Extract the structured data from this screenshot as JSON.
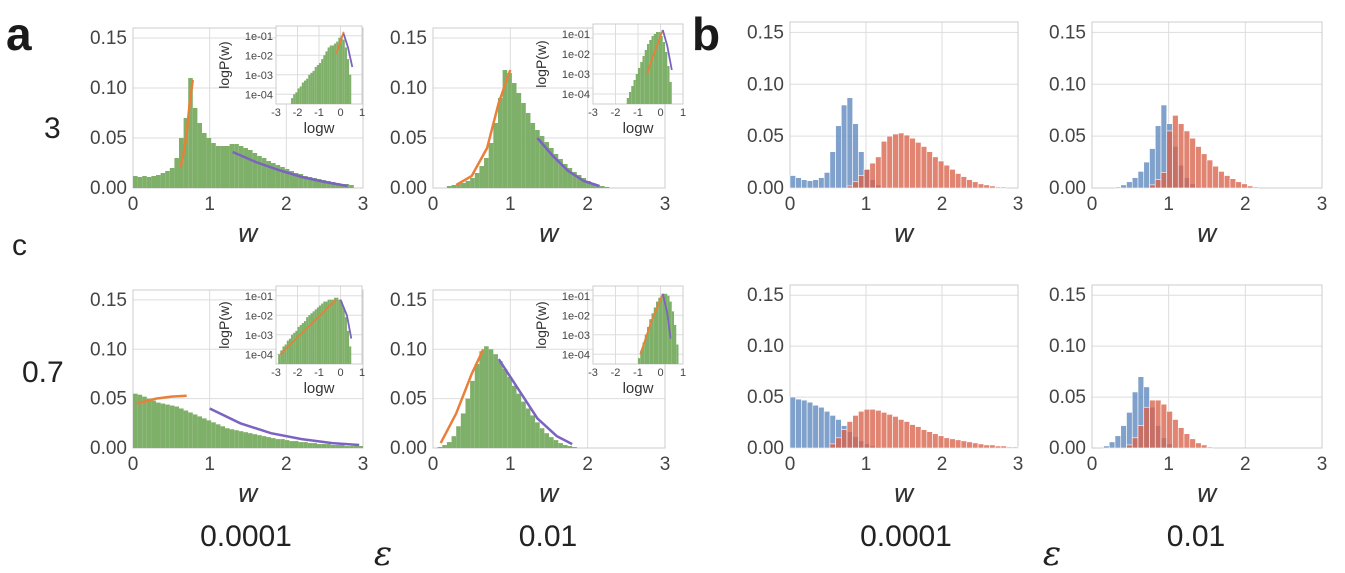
{
  "figure": {
    "panel_a_letter": "a",
    "panel_b_letter": "b",
    "c_label": "c",
    "row_labels": [
      "3",
      "0.7"
    ],
    "epsilon_symbol": "ε",
    "epsilon_values_a": [
      "0.0001",
      "0.01"
    ],
    "epsilon_values_b": [
      "0.0001",
      "0.01"
    ]
  },
  "colors": {
    "hist": "#7fb069",
    "fit_left": "#e8803a",
    "fit_right": "#7b63c2",
    "blue": "#5b87bd",
    "red": "#d9614a"
  },
  "chart_data": [
    {
      "id": "a-c3-eps0.0001",
      "type": "bar",
      "panel": "a",
      "xlabel": "w",
      "xlim": [
        0,
        3
      ],
      "ylim": [
        0,
        0.16
      ],
      "xticks": [
        "0",
        "1",
        "2",
        "3"
      ],
      "yticks": [
        "0.00",
        "0.05",
        "0.10",
        "0.15"
      ],
      "bin_width": 0.06,
      "values": [
        0.012,
        0.011,
        0.012,
        0.011,
        0.012,
        0.013,
        0.015,
        0.017,
        0.02,
        0.03,
        0.05,
        0.07,
        0.11,
        0.08,
        0.065,
        0.055,
        0.05,
        0.045,
        0.042,
        0.042,
        0.042,
        0.044,
        0.044,
        0.042,
        0.04,
        0.038,
        0.035,
        0.032,
        0.03,
        0.027,
        0.025,
        0.023,
        0.021,
        0.019,
        0.017,
        0.015,
        0.014,
        0.012,
        0.011,
        0.01,
        0.009,
        0.008,
        0.007,
        0.006,
        0.005,
        0.004,
        0.004,
        0.003
      ],
      "fit_left": {
        "x": [
          0.62,
          0.66,
          0.7,
          0.74,
          0.78
        ],
        "y": [
          0.02,
          0.035,
          0.055,
          0.085,
          0.108
        ]
      },
      "fit_right": {
        "x": [
          1.3,
          1.6,
          1.9,
          2.2,
          2.5,
          2.8
        ],
        "y": [
          0.036,
          0.026,
          0.018,
          0.011,
          0.006,
          0.002
        ]
      },
      "inset": {
        "xlabel": "logw",
        "ylabel": "logP(w)",
        "xticks": [
          "-3",
          "-2",
          "-1",
          "0",
          "1"
        ],
        "yticks": [
          "1e-04",
          "1e-03",
          "1e-02",
          "1e-01"
        ],
        "xlim": [
          -3,
          1
        ],
        "ylim": [
          -4.5,
          -0.5
        ],
        "bin_width": 0.1,
        "hist_x0": -2.3,
        "hist_logy": [
          -4.2,
          -4.0,
          -3.9,
          -3.7,
          -3.6,
          -3.4,
          -3.3,
          -3.2,
          -3.0,
          -2.9,
          -2.8,
          -2.6,
          -2.5,
          -2.4,
          -2.2,
          -2.0,
          -1.8,
          -1.6,
          -1.5,
          -1.5,
          -1.4,
          -1.3,
          -1.1,
          -1.0,
          -1.2,
          -1.6,
          -2.2,
          -3.0
        ],
        "fit_left": {
          "x": [
            -0.2,
            0,
            0.15
          ],
          "y": [
            -1.9,
            -1.3,
            -0.8
          ]
        },
        "fit_right": {
          "x": [
            0.15,
            0.35,
            0.55
          ],
          "y": [
            -0.9,
            -1.6,
            -2.6
          ]
        }
      }
    },
    {
      "id": "a-c3-eps0.01",
      "type": "bar",
      "panel": "a",
      "xlabel": "w",
      "xlim": [
        0,
        3
      ],
      "ylim": [
        0,
        0.16
      ],
      "xticks": [
        "0",
        "1",
        "2",
        "3"
      ],
      "yticks": [
        "0.00",
        "0.05",
        "0.10",
        "0.15"
      ],
      "bin_width": 0.06,
      "values": [
        0,
        0,
        0,
        0.002,
        0.003,
        0.004,
        0.005,
        0.007,
        0.01,
        0.015,
        0.022,
        0.03,
        0.045,
        0.065,
        0.09,
        0.118,
        0.115,
        0.105,
        0.095,
        0.085,
        0.075,
        0.065,
        0.058,
        0.052,
        0.046,
        0.04,
        0.034,
        0.029,
        0.024,
        0.02,
        0.016,
        0.013,
        0.01,
        0.007,
        0.005,
        0.003,
        0.002,
        0.001,
        0,
        0,
        0,
        0,
        0,
        0,
        0,
        0,
        0,
        0
      ],
      "fit_left": {
        "x": [
          0.3,
          0.5,
          0.7,
          0.85,
          1.0
        ],
        "y": [
          0.003,
          0.012,
          0.04,
          0.085,
          0.118
        ]
      },
      "fit_right": {
        "x": [
          1.35,
          1.55,
          1.75,
          1.95,
          2.15
        ],
        "y": [
          0.05,
          0.032,
          0.017,
          0.007,
          0.002
        ]
      },
      "inset": {
        "xlabel": "logw",
        "ylabel": "logP(w)",
        "xticks": [
          "-3",
          "-2",
          "-1",
          "0",
          "1"
        ],
        "yticks": [
          "1e-04",
          "1e-03",
          "1e-02",
          "1e-01"
        ],
        "xlim": [
          -3,
          1
        ],
        "ylim": [
          -4.5,
          -0.5
        ],
        "bin_width": 0.1,
        "hist_x0": -1.5,
        "hist_logy": [
          -4.2,
          -3.9,
          -3.6,
          -3.3,
          -3.0,
          -2.7,
          -2.4,
          -2.1,
          -1.8,
          -1.5,
          -1.3,
          -1.1,
          -1.0,
          -0.9,
          -0.9,
          -1.1,
          -1.4,
          -1.9,
          -2.6,
          -3.4
        ],
        "fit_left": {
          "x": [
            -0.6,
            -0.3,
            0,
            0.1
          ],
          "y": [
            -3.0,
            -2.0,
            -1.1,
            -0.8
          ]
        },
        "fit_right": {
          "x": [
            0.1,
            0.3,
            0.5
          ],
          "y": [
            -0.8,
            -1.6,
            -2.8
          ]
        }
      }
    },
    {
      "id": "a-c0.7-eps0.0001",
      "type": "bar",
      "panel": "a",
      "xlabel": "w",
      "xlim": [
        0,
        3
      ],
      "ylim": [
        0,
        0.16
      ],
      "xticks": [
        "0",
        "1",
        "2",
        "3"
      ],
      "yticks": [
        "0.00",
        "0.05",
        "0.10",
        "0.15"
      ],
      "bin_width": 0.06,
      "values": [
        0.055,
        0.054,
        0.052,
        0.05,
        0.048,
        0.046,
        0.045,
        0.044,
        0.043,
        0.042,
        0.04,
        0.038,
        0.036,
        0.034,
        0.032,
        0.03,
        0.028,
        0.026,
        0.024,
        0.022,
        0.02,
        0.019,
        0.018,
        0.017,
        0.016,
        0.015,
        0.014,
        0.013,
        0.012,
        0.011,
        0.01,
        0.009,
        0.009,
        0.008,
        0.007,
        0.007,
        0.006,
        0.006,
        0.005,
        0.005,
        0.004,
        0.004,
        0.004,
        0.003,
        0.003,
        0.003,
        0.002,
        0.002,
        0.002,
        0.002
      ],
      "fit_left": {
        "x": [
          0.05,
          0.3,
          0.5,
          0.7
        ],
        "y": [
          0.045,
          0.05,
          0.052,
          0.053
        ]
      },
      "fit_right": {
        "x": [
          1.0,
          1.4,
          1.8,
          2.2,
          2.6,
          2.95
        ],
        "y": [
          0.04,
          0.025,
          0.015,
          0.009,
          0.005,
          0.003
        ]
      },
      "inset": {
        "xlabel": "logw",
        "ylabel": "logP(w)",
        "xticks": [
          "-3",
          "-2",
          "-1",
          "0",
          "1"
        ],
        "yticks": [
          "1e-04",
          "1e-03",
          "1e-02",
          "1e-01"
        ],
        "xlim": [
          -3,
          1
        ],
        "ylim": [
          -4.5,
          -0.5
        ],
        "bin_width": 0.1,
        "hist_x0": -2.9,
        "hist_logy": [
          -4.0,
          -3.8,
          -3.6,
          -3.5,
          -3.3,
          -3.2,
          -3.0,
          -2.9,
          -2.8,
          -2.6,
          -2.5,
          -2.4,
          -2.3,
          -2.1,
          -2.0,
          -1.9,
          -1.8,
          -1.7,
          -1.6,
          -1.5,
          -1.4,
          -1.3,
          -1.3,
          -1.2,
          -1.2,
          -1.2,
          -1.1,
          -1.1,
          -1.2,
          -1.3,
          -1.6,
          -2.1,
          -2.8,
          -3.6
        ],
        "fit_left": {
          "x": [
            -2.8,
            -1.5,
            -0.2
          ],
          "y": [
            -4.0,
            -2.6,
            -1.2
          ]
        },
        "fit_right": {
          "x": [
            0.0,
            0.3,
            0.5
          ],
          "y": [
            -1.2,
            -2.0,
            -3.2
          ]
        }
      }
    },
    {
      "id": "a-c0.7-eps0.01",
      "type": "bar",
      "panel": "a",
      "xlabel": "w",
      "xlim": [
        0,
        3
      ],
      "ylim": [
        0,
        0.16
      ],
      "xticks": [
        "0",
        "1",
        "2",
        "3"
      ],
      "yticks": [
        "0.00",
        "0.05",
        "0.10",
        "0.15"
      ],
      "bin_width": 0.06,
      "values": [
        0,
        0.001,
        0.003,
        0.006,
        0.012,
        0.022,
        0.035,
        0.05,
        0.068,
        0.085,
        0.098,
        0.103,
        0.1,
        0.095,
        0.088,
        0.08,
        0.072,
        0.063,
        0.055,
        0.047,
        0.04,
        0.033,
        0.026,
        0.02,
        0.015,
        0.011,
        0.008,
        0.005,
        0.003,
        0.002,
        0.001,
        0,
        0,
        0,
        0,
        0,
        0,
        0,
        0,
        0,
        0,
        0,
        0,
        0,
        0,
        0,
        0,
        0
      ],
      "fit_left": {
        "x": [
          0.1,
          0.3,
          0.5,
          0.65
        ],
        "y": [
          0.005,
          0.035,
          0.075,
          0.1
        ]
      },
      "fit_right": {
        "x": [
          0.85,
          1.1,
          1.35,
          1.6,
          1.8
        ],
        "y": [
          0.09,
          0.06,
          0.03,
          0.012,
          0.004
        ]
      },
      "inset": {
        "xlabel": "logw",
        "ylabel": "logP(w)",
        "xticks": [
          "-3",
          "-2",
          "-1",
          "0",
          "1"
        ],
        "yticks": [
          "1e-04",
          "1e-03",
          "1e-02",
          "1e-01"
        ],
        "xlim": [
          -3,
          1
        ],
        "ylim": [
          -4.5,
          -0.5
        ],
        "bin_width": 0.1,
        "hist_x0": -1.0,
        "hist_logy": [
          -4.2,
          -3.8,
          -3.4,
          -3.0,
          -2.6,
          -2.2,
          -1.9,
          -1.6,
          -1.3,
          -1.1,
          -1.0,
          -0.9,
          -0.9,
          -1.0,
          -1.3,
          -1.8,
          -2.5,
          -3.5
        ],
        "fit_left": {
          "x": [
            -0.9,
            -0.4,
            0.1
          ],
          "y": [
            -4.0,
            -2.3,
            -0.9
          ]
        },
        "fit_right": {
          "x": [
            0.1,
            0.3,
            0.45
          ],
          "y": [
            -0.9,
            -1.9,
            -3.2
          ]
        }
      }
    },
    {
      "id": "b-c3-eps0.0001",
      "type": "bar",
      "panel": "b",
      "xlabel": "w",
      "xlim": [
        0,
        3
      ],
      "ylim": [
        0,
        0.16
      ],
      "xticks": [
        "0",
        "1",
        "2",
        "3"
      ],
      "yticks": [
        "0.00",
        "0.05",
        "0.10",
        "0.15"
      ],
      "bin_width": 0.075,
      "series": [
        {
          "name": "",
          "color": "blue",
          "values": [
            0.012,
            0.01,
            0.008,
            0.007,
            0.008,
            0.01,
            0.015,
            0.035,
            0.06,
            0.08,
            0.087,
            0.062,
            0.035,
            0.018,
            0.008,
            0.003,
            0.001,
            0,
            0,
            0,
            0,
            0,
            0,
            0,
            0,
            0,
            0,
            0,
            0,
            0,
            0,
            0,
            0,
            0,
            0,
            0,
            0,
            0,
            0,
            0
          ]
        },
        {
          "name": "",
          "color": "red",
          "values": [
            0,
            0,
            0,
            0,
            0,
            0,
            0,
            0,
            0,
            0,
            0.002,
            0.006,
            0.012,
            0.018,
            0.024,
            0.03,
            0.045,
            0.05,
            0.052,
            0.053,
            0.051,
            0.048,
            0.044,
            0.04,
            0.035,
            0.03,
            0.026,
            0.022,
            0.018,
            0.014,
            0.011,
            0.008,
            0.006,
            0.004,
            0.003,
            0.002,
            0.001,
            0.001,
            0,
            0
          ]
        }
      ]
    },
    {
      "id": "b-c3-eps0.01",
      "type": "bar",
      "panel": "b",
      "xlabel": "w",
      "xlim": [
        0,
        3
      ],
      "ylim": [
        0,
        0.16
      ],
      "xticks": [
        "0",
        "1",
        "2",
        "3"
      ],
      "yticks": [
        "0.00",
        "0.05",
        "0.10",
        "0.15"
      ],
      "bin_width": 0.075,
      "series": [
        {
          "name": "",
          "color": "blue",
          "values": [
            0,
            0,
            0,
            0,
            0.001,
            0.003,
            0.006,
            0.01,
            0.016,
            0.025,
            0.038,
            0.06,
            0.08,
            0.062,
            0.04,
            0.022,
            0.01,
            0.004,
            0.001,
            0,
            0,
            0,
            0,
            0,
            0,
            0,
            0,
            0,
            0,
            0,
            0,
            0,
            0,
            0,
            0,
            0,
            0,
            0,
            0,
            0
          ]
        },
        {
          "name": "",
          "color": "red",
          "values": [
            0,
            0,
            0,
            0,
            0,
            0,
            0,
            0,
            0,
            0,
            0.003,
            0.008,
            0.015,
            0.055,
            0.07,
            0.062,
            0.055,
            0.048,
            0.04,
            0.033,
            0.027,
            0.021,
            0.016,
            0.012,
            0.009,
            0.006,
            0.004,
            0.002,
            0.001,
            0,
            0,
            0,
            0,
            0,
            0,
            0,
            0,
            0,
            0,
            0
          ]
        }
      ]
    },
    {
      "id": "b-c0.7-eps0.0001",
      "type": "bar",
      "panel": "b",
      "xlabel": "w",
      "xlim": [
        0,
        3
      ],
      "ylim": [
        0,
        0.16
      ],
      "xticks": [
        "0",
        "1",
        "2",
        "3"
      ],
      "yticks": [
        "0.00",
        "0.05",
        "0.10",
        "0.15"
      ],
      "bin_width": 0.075,
      "series": [
        {
          "name": "",
          "color": "blue",
          "values": [
            0.05,
            0.048,
            0.047,
            0.045,
            0.042,
            0.04,
            0.036,
            0.032,
            0.028,
            0.022,
            0.016,
            0.011,
            0.007,
            0.004,
            0.002,
            0.001,
            0,
            0,
            0,
            0,
            0,
            0,
            0,
            0,
            0,
            0,
            0,
            0,
            0,
            0,
            0,
            0,
            0,
            0,
            0,
            0,
            0,
            0,
            0,
            0
          ]
        },
        {
          "name": "",
          "color": "red",
          "values": [
            0,
            0,
            0,
            0,
            0,
            0,
            0,
            0.004,
            0.01,
            0.018,
            0.026,
            0.032,
            0.036,
            0.038,
            0.038,
            0.037,
            0.035,
            0.033,
            0.031,
            0.028,
            0.026,
            0.023,
            0.021,
            0.018,
            0.016,
            0.014,
            0.012,
            0.01,
            0.009,
            0.008,
            0.007,
            0.006,
            0.005,
            0.004,
            0.003,
            0.003,
            0.002,
            0.002,
            0.001,
            0.001
          ]
        }
      ]
    },
    {
      "id": "b-c0.7-eps0.01",
      "type": "bar",
      "panel": "b",
      "xlabel": "w",
      "xlim": [
        0,
        3
      ],
      "ylim": [
        0,
        0.16
      ],
      "xticks": [
        "0",
        "1",
        "2",
        "3"
      ],
      "yticks": [
        "0.00",
        "0.05",
        "0.10",
        "0.15"
      ],
      "bin_width": 0.075,
      "series": [
        {
          "name": "",
          "color": "blue",
          "values": [
            0,
            0,
            0.002,
            0.006,
            0.012,
            0.022,
            0.035,
            0.055,
            0.07,
            0.06,
            0.04,
            0.022,
            0.01,
            0.004,
            0.001,
            0,
            0,
            0,
            0,
            0,
            0,
            0,
            0,
            0,
            0,
            0,
            0,
            0,
            0,
            0,
            0,
            0,
            0,
            0,
            0,
            0,
            0,
            0,
            0,
            0
          ]
        },
        {
          "name": "",
          "color": "red",
          "values": [
            0,
            0,
            0,
            0,
            0,
            0,
            0.003,
            0.01,
            0.022,
            0.04,
            0.047,
            0.047,
            0.043,
            0.036,
            0.028,
            0.02,
            0.014,
            0.009,
            0.005,
            0.003,
            0.001,
            0,
            0,
            0,
            0,
            0,
            0,
            0,
            0,
            0,
            0,
            0,
            0,
            0,
            0,
            0,
            0,
            0,
            0,
            0
          ]
        }
      ]
    }
  ]
}
